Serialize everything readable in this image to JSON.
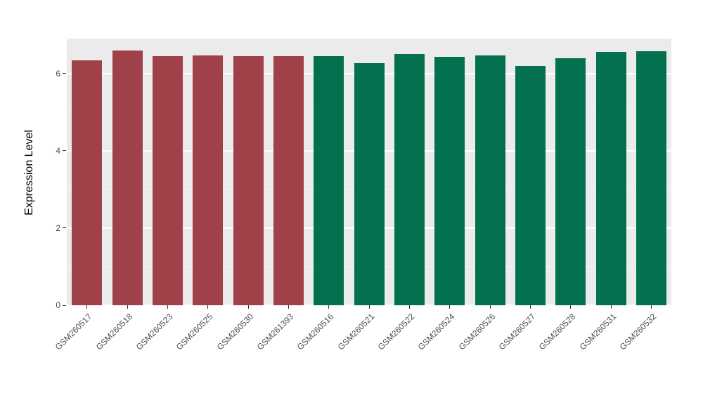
{
  "chart_data": {
    "type": "bar",
    "title": "",
    "xlabel": "",
    "ylabel": "Expression Level",
    "ylim": [
      0,
      6.9
    ],
    "yticks": [
      0,
      2,
      4,
      6
    ],
    "yticks_minor": [
      1,
      3,
      5
    ],
    "grid": "on",
    "legend": "none",
    "plot_background": "#EBEBEB",
    "categories": [
      "GSM260517",
      "GSM260518",
      "GSM260523",
      "GSM260525",
      "GSM260530",
      "GSM261393",
      "GSM260516",
      "GSM260521",
      "GSM260522",
      "GSM260524",
      "GSM260526",
      "GSM260527",
      "GSM260528",
      "GSM260531",
      "GSM260532"
    ],
    "values": [
      6.33,
      6.6,
      6.45,
      6.47,
      6.45,
      6.45,
      6.45,
      6.27,
      6.5,
      6.42,
      6.47,
      6.2,
      6.4,
      6.55,
      6.58
    ],
    "groups": [
      "group1",
      "group1",
      "group1",
      "group1",
      "group1",
      "group1",
      "group2",
      "group2",
      "group2",
      "group2",
      "group2",
      "group2",
      "group2",
      "group2",
      "group2"
    ],
    "group_colors": {
      "group1": "#A04049",
      "group2": "#03714F"
    }
  }
}
